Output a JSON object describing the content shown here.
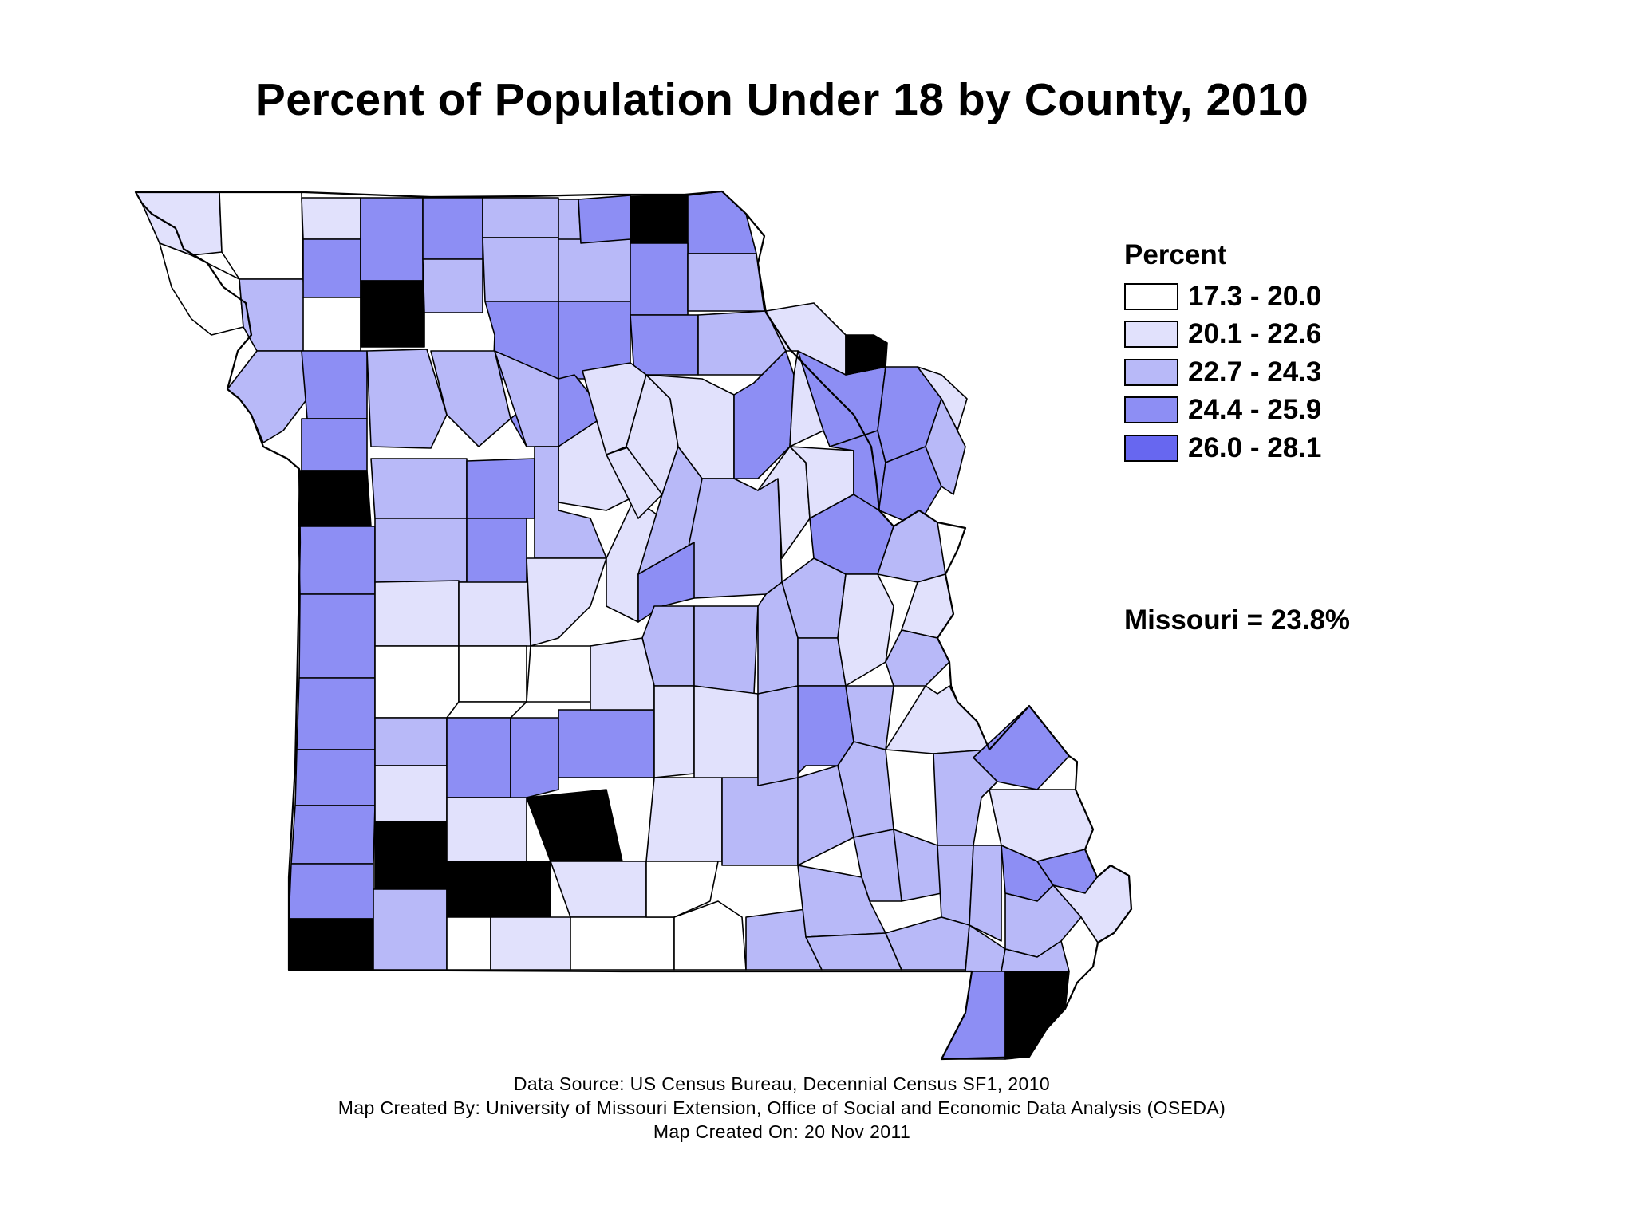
{
  "title": "Percent of Population Under 18 by County, 2010",
  "colors": {
    "class1": "#ffffff",
    "class2": "#e1e1fc",
    "class3": "#b8b9f8",
    "class4": "#8d8ef4",
    "class5": "#6767f0",
    "border": "#000000"
  },
  "legend": {
    "title": "Percent",
    "items": [
      {
        "label": "17.3 - 20.0",
        "color": "#ffffff"
      },
      {
        "label": "20.1 - 22.6",
        "color": "#e1e1fc"
      },
      {
        "label": "22.7 - 24.3",
        "color": "#b8b9f8"
      },
      {
        "label": "24.4 - 25.9",
        "color": "#8d8ef4"
      },
      {
        "label": "26.0 - 28.1",
        "color": "#6767f0"
      }
    ]
  },
  "state_value": "Missouri = 23.8%",
  "credits": {
    "source": "Data Source: US Census Bureau, Decennial Census SF1, 2010",
    "created_by": "Map Created By: University of Missouri Extension, Office of Social and Economic Data Analysis (OSEDA)",
    "created_on": "Map Created On: 20 Nov 2011"
  }
}
